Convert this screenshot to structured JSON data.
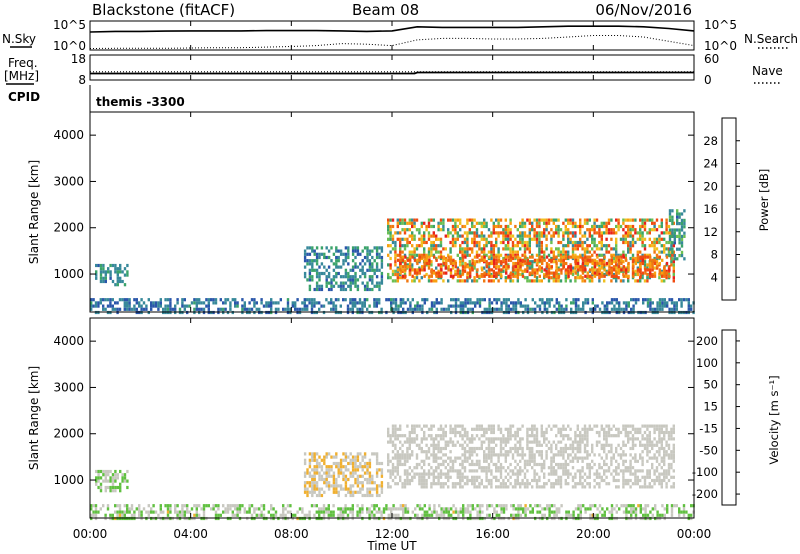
{
  "header": {
    "radar": "Blackstone (fitACF)",
    "beam": "Beam 08",
    "date": "06/Nov/2016",
    "cpid_text": "themis -3300"
  },
  "left_labels": {
    "nsky": "N.Sky",
    "freq": "Freq.",
    "freq_unit": "[MHz]",
    "cpid": "CPID"
  },
  "right_labels": {
    "nsearch": "N.Search",
    "nave": "Nave"
  },
  "noise_axis": {
    "left_top": "10^5",
    "left_bottom": "10^0",
    "right_top": "10^5",
    "right_bottom": "10^0"
  },
  "freq_axis": {
    "left_top": "18",
    "left_bottom": "8",
    "right_top": "60",
    "right_bottom": "0"
  },
  "chart_data": [
    {
      "type": "line",
      "panel": "noise",
      "series": [
        {
          "name": "N.Sky",
          "style": "solid",
          "x": [
            0,
            1,
            2,
            3,
            4,
            5,
            6,
            7,
            8,
            9,
            10,
            11,
            12,
            13,
            14,
            15,
            16,
            17,
            18,
            19,
            20,
            21,
            22,
            23,
            24
          ],
          "y": [
            0.62,
            0.64,
            0.64,
            0.65,
            0.66,
            0.66,
            0.66,
            0.67,
            0.67,
            0.67,
            0.66,
            0.64,
            0.66,
            0.8,
            0.78,
            0.78,
            0.78,
            0.78,
            0.8,
            0.82,
            0.82,
            0.82,
            0.8,
            0.74,
            0.66
          ]
        },
        {
          "name": "N.Search",
          "style": "dotted",
          "x": [
            0,
            1,
            2,
            3,
            4,
            5,
            6,
            7,
            8,
            9,
            10,
            11,
            12,
            13,
            14,
            15,
            16,
            17,
            18,
            19,
            20,
            21,
            22,
            23,
            24
          ],
          "y": [
            0.05,
            0.06,
            0.06,
            0.06,
            0.07,
            0.08,
            0.08,
            0.1,
            0.12,
            0.15,
            0.22,
            0.2,
            0.15,
            0.35,
            0.4,
            0.4,
            0.38,
            0.38,
            0.4,
            0.45,
            0.5,
            0.5,
            0.45,
            0.3,
            0.15
          ]
        }
      ]
    },
    {
      "type": "line",
      "panel": "frequency",
      "series": [
        {
          "name": "Freq.",
          "style": "solid",
          "x": [
            0,
            4,
            8,
            12,
            12.9,
            13,
            16,
            20,
            24
          ],
          "y": [
            10.6,
            10.6,
            10.6,
            10.6,
            10.6,
            11.0,
            11.0,
            11.0,
            11.0
          ]
        },
        {
          "name": "Nave",
          "style": "dotted",
          "x": [
            0,
            24
          ],
          "y": [
            20,
            20
          ]
        }
      ]
    },
    {
      "type": "heatmap",
      "panel": "power",
      "ylabel": "Slant Range [km]",
      "xlabel": "",
      "xlim": [
        0,
        24
      ],
      "ylim": [
        180,
        4500
      ],
      "yticks": [
        1000,
        2000,
        3000,
        4000
      ],
      "colorbar": {
        "label": "Power [dB]",
        "ticks": [
          "4",
          "8",
          "12",
          "16",
          "20",
          "24",
          "28"
        ],
        "colors": [
          "#0b1eea",
          "#2a56aa",
          "#37889a",
          "#3aa36a",
          "#6bbf52",
          "#f0c020",
          "#f8a010",
          "#f07810",
          "#f04a10",
          "#e8201c"
        ],
        "range": [
          0,
          32
        ]
      },
      "regions": [
        {
          "label": "near-range",
          "x": [
            0,
            24
          ],
          "y": [
            200,
            480
          ],
          "values": [
            4,
            10
          ]
        },
        {
          "label": "early patch",
          "x": [
            0.2,
            1.5
          ],
          "y": [
            760,
            1220
          ],
          "values": [
            6,
            12
          ]
        },
        {
          "label": "pre-midday",
          "x": [
            8.5,
            11.6
          ],
          "y": [
            700,
            1600
          ],
          "values": [
            5,
            12
          ]
        },
        {
          "label": "main echo band",
          "x": [
            11.8,
            23.2
          ],
          "y": [
            850,
            2200
          ],
          "values": [
            8,
            30
          ]
        },
        {
          "label": "band core",
          "x": [
            12.2,
            23.0
          ],
          "y": [
            950,
            1400
          ],
          "values": [
            20,
            30
          ]
        },
        {
          "label": "late tail",
          "x": [
            23.0,
            23.6
          ],
          "y": [
            1300,
            2400
          ],
          "values": [
            6,
            14
          ]
        }
      ]
    },
    {
      "type": "heatmap",
      "panel": "velocity",
      "ylabel": "Slant Range [km]",
      "xlabel": "Time UT",
      "xlim": [
        0,
        24
      ],
      "ylim": [
        180,
        4500
      ],
      "yticks": [
        1000,
        2000,
        3000,
        4000
      ],
      "xticks": [
        "00:00",
        "04:00",
        "08:00",
        "12:00",
        "16:00",
        "20:00",
        "00:00"
      ],
      "colorbar": {
        "label": "Velocity [m s⁻¹]",
        "ticks": [
          "200",
          "100",
          "50",
          "15",
          "-15",
          "-50",
          "-100",
          "-200"
        ],
        "colors": [
          "#2838c8",
          "#3a6aa8",
          "#3a9a5a",
          "#60c040",
          "#c8c8c0",
          "#f0b030",
          "#f8a020",
          "#f07a10",
          "#e83a10"
        ],
        "range": [
          -250,
          250
        ]
      },
      "regions": [
        {
          "label": "near-range",
          "x": [
            0,
            24
          ],
          "y": [
            200,
            480
          ],
          "values": [
            -80,
            30
          ]
        },
        {
          "label": "early patch",
          "x": [
            0.2,
            1.5
          ],
          "y": [
            760,
            1220
          ],
          "values": [
            -60,
            0
          ]
        },
        {
          "label": "pre-midday",
          "x": [
            8.5,
            11.6
          ],
          "y": [
            700,
            1600
          ],
          "values": [
            -15,
            60
          ]
        },
        {
          "label": "main echo band",
          "x": [
            11.8,
            23.2
          ],
          "y": [
            850,
            2200
          ],
          "values": [
            -15,
            15
          ]
        }
      ]
    }
  ]
}
